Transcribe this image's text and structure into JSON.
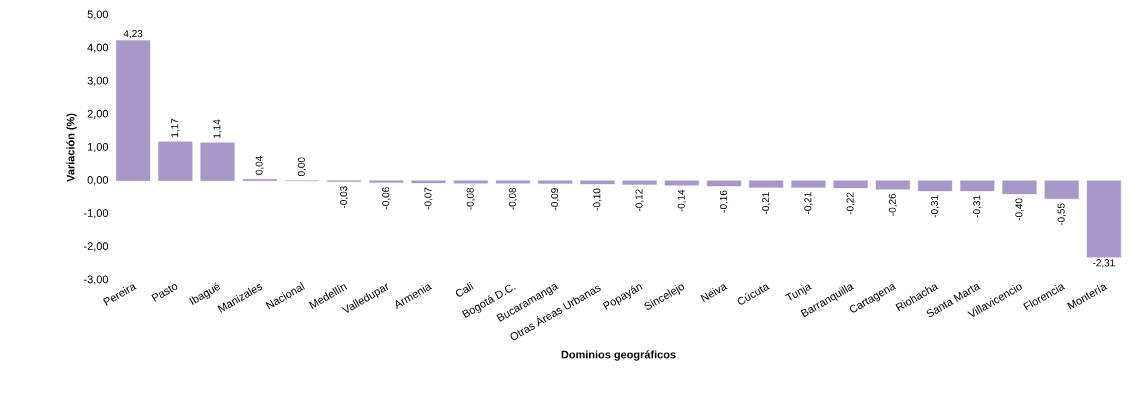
{
  "chart_data": {
    "type": "bar",
    "xlabel": "Dominios geográficos",
    "ylabel": "Variación (%)",
    "categories": [
      "Pereira",
      "Pasto",
      "Ibagué",
      "Manizales",
      "Nacional",
      "Medellín",
      "Valledupar",
      "Armenia",
      "Cali",
      "Bogotá D.C.",
      "Bucaramanga",
      "Otras Áreas Urbanas",
      "Popayán",
      "Sincelejo",
      "Neiva",
      "Cúcuta",
      "Tunja",
      "Barranquilla",
      "Cartagena",
      "Riohacha",
      "Santa Marta",
      "Villavicencio",
      "Florencia",
      "Montería"
    ],
    "values": [
      4.23,
      1.17,
      1.14,
      0.04,
      0.0,
      -0.03,
      -0.06,
      -0.07,
      -0.08,
      -0.08,
      -0.09,
      -0.1,
      -0.12,
      -0.14,
      -0.16,
      -0.21,
      -0.21,
      -0.22,
      -0.26,
      -0.31,
      -0.31,
      -0.4,
      -0.55,
      -2.31
    ],
    "value_labels": [
      "4,23",
      "1,17",
      "1,14",
      "0,04",
      "0,00",
      "-0,03",
      "-0,06",
      "-0,07",
      "-0,08",
      "-0,08",
      "-0,09",
      "-0,10",
      "-0,12",
      "-0,14",
      "-0,16",
      "-0,21",
      "-0,21",
      "-0,22",
      "-0,26",
      "-0,31",
      "-0,31",
      "-0,40",
      "-0,55",
      "-2,31"
    ],
    "color": "#a898c8",
    "ylim": [
      -3,
      5
    ],
    "yticks": [
      {
        "value": -3,
        "label": "-3,00"
      },
      {
        "value": -2,
        "label": "-2,00"
      },
      {
        "value": -1,
        "label": "-1,00"
      },
      {
        "value": 0,
        "label": "0,00"
      },
      {
        "value": 1,
        "label": "1,00"
      },
      {
        "value": 2,
        "label": "2,00"
      },
      {
        "value": 3,
        "label": "3,00"
      },
      {
        "value": 4,
        "label": "4,00"
      },
      {
        "value": 5,
        "label": "5,00"
      }
    ],
    "grid": false
  }
}
